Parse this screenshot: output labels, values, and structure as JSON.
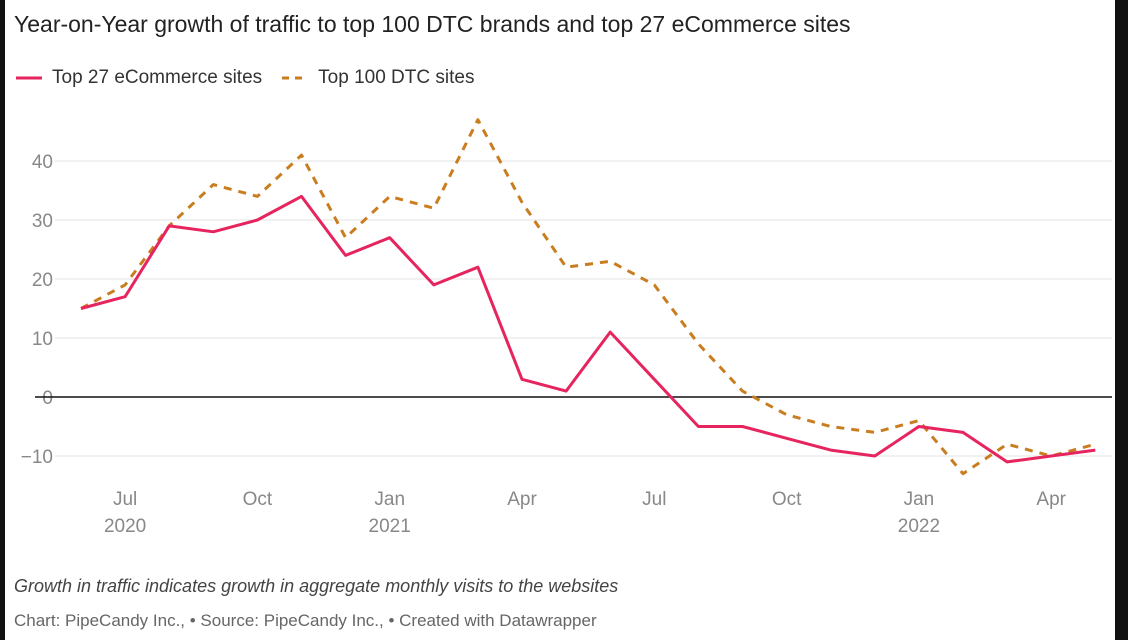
{
  "chart_data": {
    "type": "line",
    "title": "Year-on-Year growth of traffic to top 100 DTC brands and top 27 eCommerce sites",
    "x": [
      "Jun 2020",
      "Jul 2020",
      "Aug 2020",
      "Sep 2020",
      "Oct 2020",
      "Nov 2020",
      "Dec 2020",
      "Jan 2021",
      "Feb 2021",
      "Mar 2021",
      "Apr 2021",
      "May 2021",
      "Jun 2021",
      "Jul 2021",
      "Aug 2021",
      "Sep 2021",
      "Oct 2021",
      "Nov 2021",
      "Dec 2021",
      "Jan 2022",
      "Feb 2022",
      "Mar 2022",
      "Apr 2022",
      "May 2022"
    ],
    "series": [
      {
        "name": "Top 27 eCommerce sites",
        "color": "#e6245e",
        "style": "solid",
        "values": [
          15,
          17,
          29,
          28,
          30,
          34,
          24,
          27,
          19,
          22,
          3,
          1,
          11,
          3,
          -5,
          -5,
          -7,
          -9,
          -10,
          -5,
          -6,
          -11,
          -10,
          -9
        ]
      },
      {
        "name": "Top 100 DTC sites",
        "color": "#c97d1f",
        "style": "dashed",
        "values": [
          15,
          19,
          29,
          36,
          34,
          41,
          27,
          34,
          32,
          47,
          33,
          22,
          23,
          19,
          9,
          1,
          -3,
          -5,
          -6,
          -4,
          -13,
          -8,
          -10,
          -8
        ]
      }
    ],
    "ylim": [
      -10,
      47
    ],
    "yticks": [
      "40",
      "30",
      "20",
      "10",
      "0",
      "−10"
    ],
    "ytick_values": [
      40,
      30,
      20,
      10,
      0,
      -10
    ],
    "xticks": [
      {
        "month_index": 1,
        "label": "Jul",
        "year": "2020"
      },
      {
        "month_index": 4,
        "label": "Oct",
        "year": ""
      },
      {
        "month_index": 7,
        "label": "Jan",
        "year": "2021"
      },
      {
        "month_index": 10,
        "label": "Apr",
        "year": ""
      },
      {
        "month_index": 13,
        "label": "Jul",
        "year": ""
      },
      {
        "month_index": 16,
        "label": "Oct",
        "year": ""
      },
      {
        "month_index": 19,
        "label": "Jan",
        "year": "2022"
      },
      {
        "month_index": 22,
        "label": "Apr",
        "year": ""
      }
    ],
    "grid": true,
    "legend": "top-left",
    "notes": "Growth in traffic indicates growth in aggregate monthly visits to the websites",
    "credit": "Chart: PipeCandy Inc., • Source: PipeCandy Inc., • Created with Datawrapper"
  }
}
